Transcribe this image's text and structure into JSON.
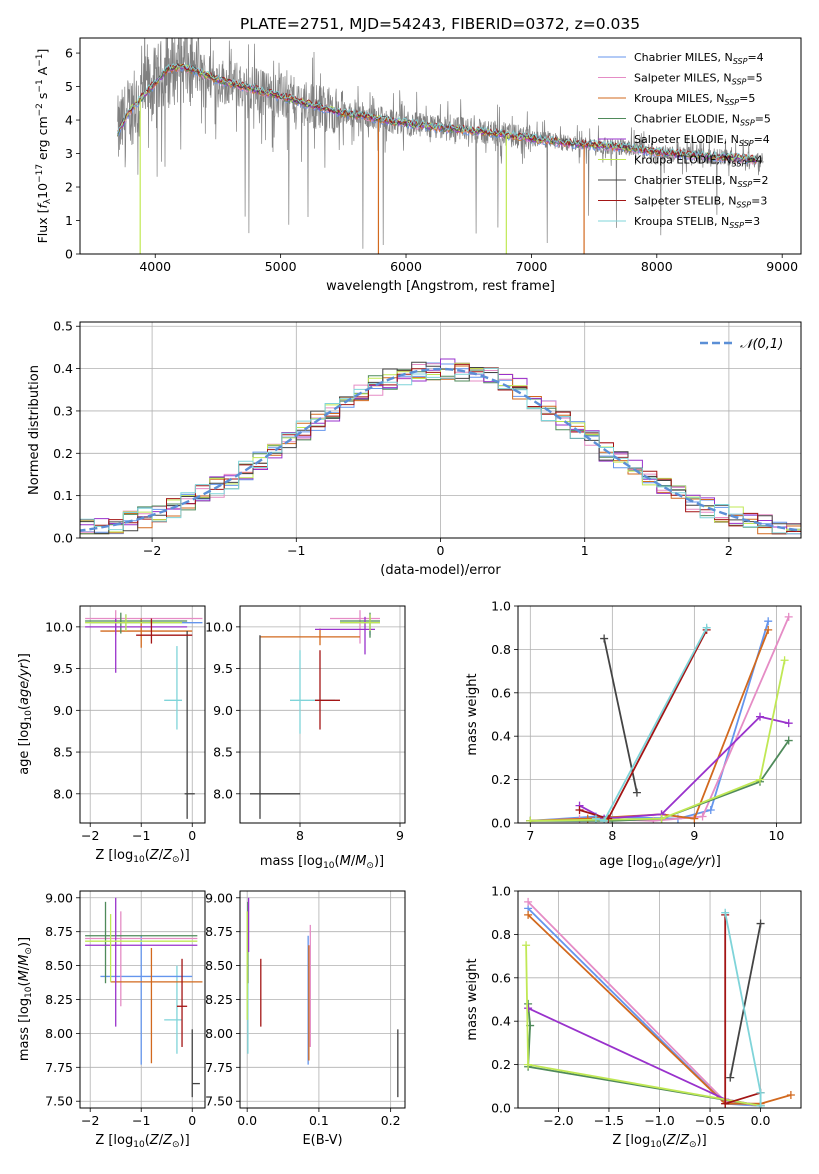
{
  "figure": {
    "title": "PLATE=2751, MJD=54243, FIBERID=0372, z=0.035"
  },
  "legend": [
    {
      "label": "Chabrier MILES, N",
      "sub": "SSP",
      "val": "=4",
      "color": "#6495ed"
    },
    {
      "label": "Salpeter MILES, N",
      "sub": "SSP",
      "val": "=5",
      "color": "#e58cc5"
    },
    {
      "label": "Kroupa MILES, N",
      "sub": "SSP",
      "val": "=5",
      "color": "#d2691e"
    },
    {
      "label": "Chabrier ELODIE, N",
      "sub": "SSP",
      "val": "=5",
      "color": "#4f8a5a"
    },
    {
      "label": "Salpeter ELODIE, N",
      "sub": "SSP",
      "val": "=4",
      "color": "#9932cc"
    },
    {
      "label": "Kroupa ELODIE, N",
      "sub": "SSP",
      "val": "=4",
      "color": "#c0e854"
    },
    {
      "label": "Chabrier STELIB, N",
      "sub": "SSP",
      "val": "=2",
      "color": "#444444"
    },
    {
      "label": "Salpeter STELIB, N",
      "sub": "SSP",
      "val": "=3",
      "color": "#a31515"
    },
    {
      "label": "Kroupa STELIB, N",
      "sub": "SSP",
      "val": "=3",
      "color": "#7fd4d9"
    }
  ],
  "chart_data": [
    {
      "id": "spectrum",
      "type": "line",
      "xlabel": "wavelength [Angstrom, rest frame]",
      "ylabel": "Flux [f_λ 10^-17 erg cm^-2 s^-1 A^-1]",
      "xlim": [
        3400,
        9150
      ],
      "ylim": [
        0,
        6.45
      ],
      "xticks": [
        4000,
        5000,
        6000,
        7000,
        8000,
        9000
      ],
      "yticks": [
        0,
        1,
        2,
        3,
        4,
        5,
        6
      ],
      "grid": false,
      "data_color": "#808080",
      "model_x": [
        3700,
        3800,
        3900,
        4000,
        4100,
        4200,
        4300,
        4500,
        4700,
        4900,
        5100,
        5300,
        5500,
        5700,
        5900,
        6100,
        6300,
        6500,
        6700,
        6900,
        7100,
        7300,
        7500,
        7700,
        7900,
        8100,
        8300,
        8500,
        8700,
        8800
      ],
      "model_y": [
        3.6,
        4.3,
        4.7,
        5.1,
        5.5,
        5.6,
        5.5,
        5.2,
        5.0,
        4.8,
        4.6,
        4.4,
        4.2,
        4.1,
        3.95,
        3.85,
        3.75,
        3.7,
        3.6,
        3.5,
        3.4,
        3.3,
        3.25,
        3.2,
        3.1,
        3.0,
        2.95,
        2.9,
        2.85,
        2.8
      ]
    },
    {
      "id": "residuals",
      "type": "line",
      "xlabel": "(data-model)/error",
      "ylabel": "Normed distribution",
      "xlim": [
        -2.5,
        2.5
      ],
      "ylim": [
        0,
        0.51
      ],
      "xticks": [
        -2,
        -1,
        0,
        1,
        2
      ],
      "yticks": [
        0.0,
        0.1,
        0.2,
        0.3,
        0.4,
        0.5
      ],
      "grid": true,
      "legend": "𝒩(0,1)",
      "gaussian": {
        "mean": 0,
        "sigma": 1,
        "color": "#5b8fd6"
      }
    },
    {
      "id": "age_vs_Z",
      "type": "scatter",
      "xlabel": "Z [log10(Z/Z⊙)]",
      "ylabel": "age  [log10(age/yr)]",
      "xlim": [
        -2.2,
        0.25
      ],
      "ylim": [
        7.65,
        10.25
      ],
      "xticks": [
        -2,
        -1,
        0
      ],
      "yticks": [
        8.0,
        8.5,
        9.0,
        9.5,
        10.0
      ],
      "grid": true,
      "points": [
        {
          "x": -0.3,
          "y": 9.12,
          "xerr": [
            0.25,
            0.1
          ],
          "yerr": [
            0.35,
            0.65
          ],
          "s": 8
        },
        {
          "x": -1.3,
          "y": 10.05,
          "xerr": [
            0.7,
            1.5
          ],
          "yerr": [
            0.1,
            0.1
          ],
          "s": 0
        },
        {
          "x": -1.5,
          "y": 10.1,
          "xerr": [
            0.6,
            1.7
          ],
          "yerr": [
            0.2,
            0.1
          ],
          "s": 1
        },
        {
          "x": -1.0,
          "y": 9.95,
          "xerr": [
            0.8,
            1.0
          ],
          "yerr": [
            0.2,
            0.15
          ],
          "s": 2
        },
        {
          "x": -1.4,
          "y": 10.07,
          "xerr": [
            0.7,
            1.3
          ],
          "yerr": [
            0.15,
            0.1
          ],
          "s": 3
        },
        {
          "x": -1.5,
          "y": 10.0,
          "xerr": [
            0.6,
            1.4
          ],
          "yerr": [
            0.55,
            0.1
          ],
          "s": 4
        },
        {
          "x": -1.3,
          "y": 10.05,
          "xerr": [
            0.8,
            1.1
          ],
          "yerr": [
            0.1,
            0.1
          ],
          "s": 5
        },
        {
          "x": -0.1,
          "y": 8.0,
          "xerr": [
            0.05,
            0.15
          ],
          "yerr": [
            0.3,
            1.95
          ],
          "s": 6
        },
        {
          "x": -0.8,
          "y": 9.9,
          "xerr": [
            0.3,
            0.8
          ],
          "yerr": [
            0.1,
            0.2
          ],
          "s": 7
        }
      ]
    },
    {
      "id": "age_vs_mass",
      "type": "scatter",
      "xlabel": "mass [log10(M/M⊙)]",
      "ylabel": "",
      "xlim": [
        7.4,
        9.05
      ],
      "ylim": [
        7.65,
        10.25
      ],
      "xticks": [
        8,
        9
      ],
      "yticks": [
        8.0,
        8.5,
        9.0,
        9.5,
        10.0
      ],
      "grid": true,
      "points": [
        {
          "x": 8.0,
          "y": 9.12,
          "xerr": [
            0.1,
            0.35
          ],
          "yerr": [
            0.4,
            0.6
          ],
          "s": 8
        },
        {
          "x": 8.7,
          "y": 10.05,
          "xerr": [
            0.3,
            0.1
          ],
          "yerr": [
            0.15,
            0.1
          ],
          "s": 0
        },
        {
          "x": 8.6,
          "y": 10.1,
          "xerr": [
            0.3,
            0.2
          ],
          "yerr": [
            0.3,
            0.1
          ],
          "s": 1
        },
        {
          "x": 8.2,
          "y": 9.88,
          "xerr": [
            0.6,
            0.4
          ],
          "yerr": [
            0.1,
            0.1
          ],
          "s": 2
        },
        {
          "x": 8.7,
          "y": 10.07,
          "xerr": [
            0.3,
            0.1
          ],
          "yerr": [
            0.2,
            0.1
          ],
          "s": 3
        },
        {
          "x": 8.65,
          "y": 9.97,
          "xerr": [
            0.5,
            0.1
          ],
          "yerr": [
            0.3,
            0.15
          ],
          "s": 4
        },
        {
          "x": 8.7,
          "y": 10.05,
          "xerr": [
            0.3,
            0.1
          ],
          "yerr": [
            0.1,
            0.1
          ],
          "s": 5
        },
        {
          "x": 7.6,
          "y": 8.0,
          "xerr": [
            0.1,
            0.4
          ],
          "yerr": [
            0.3,
            1.9
          ],
          "s": 6
        },
        {
          "x": 8.2,
          "y": 9.12,
          "xerr": [
            0.05,
            0.2
          ],
          "yerr": [
            0.35,
            0.6
          ],
          "s": 7
        }
      ]
    },
    {
      "id": "weight_vs_age",
      "type": "line",
      "xlabel": "age  [log10(age/yr)]",
      "ylabel": "mass weight",
      "xlim": [
        6.85,
        10.3
      ],
      "ylim": [
        0,
        1.0
      ],
      "xticks": [
        7,
        8,
        9,
        10
      ],
      "yticks": [
        0.0,
        0.2,
        0.4,
        0.6,
        0.8,
        1.0
      ],
      "grid": true,
      "series": [
        {
          "s": 0,
          "x": [
            7.0,
            7.8,
            8.8,
            9.2,
            9.9
          ],
          "y": [
            0.01,
            0.03,
            0.02,
            0.06,
            0.93
          ]
        },
        {
          "s": 1,
          "x": [
            7.0,
            7.6,
            8.5,
            9.1,
            10.15
          ],
          "y": [
            0.01,
            0.02,
            0.01,
            0.03,
            0.95
          ]
        },
        {
          "s": 2,
          "x": [
            7.0,
            7.7,
            8.6,
            9.0,
            9.9
          ],
          "y": [
            0.01,
            0.02,
            0.04,
            0.02,
            0.89
          ]
        },
        {
          "s": 3,
          "x": [
            7.0,
            8.0,
            8.6,
            9.8,
            10.15
          ],
          "y": [
            0.01,
            0.01,
            0.02,
            0.19,
            0.38
          ]
        },
        {
          "s": 4,
          "x": [
            7.6,
            7.9,
            8.6,
            9.8,
            10.15
          ],
          "y": [
            0.08,
            0.02,
            0.04,
            0.49,
            0.46
          ]
        },
        {
          "s": 5,
          "x": [
            7.0,
            8.6,
            9.8,
            10.1
          ],
          "y": [
            0.01,
            0.02,
            0.2,
            0.75
          ]
        },
        {
          "s": 6,
          "x": [
            7.9,
            8.3
          ],
          "y": [
            0.85,
            0.14
          ]
        },
        {
          "s": 7,
          "x": [
            7.6,
            7.95,
            9.15
          ],
          "y": [
            0.06,
            0.02,
            0.89
          ]
        },
        {
          "s": 8,
          "x": [
            7.8,
            7.9,
            9.15
          ],
          "y": [
            0.02,
            0.01,
            0.9
          ]
        }
      ]
    },
    {
      "id": "mass_vs_Z",
      "type": "scatter",
      "xlabel": "Z [log10(Z/Z⊙)]",
      "ylabel": "mass [log10(M/M⊙)]",
      "xlim": [
        -2.2,
        0.25
      ],
      "ylim": [
        7.45,
        9.05
      ],
      "xticks": [
        -2,
        -1,
        0
      ],
      "yticks": [
        7.5,
        7.75,
        8.0,
        8.25,
        8.5,
        8.75,
        9.0
      ],
      "grid": true,
      "points": [
        {
          "x": -0.3,
          "y": 8.1,
          "xerr": [
            0.25,
            0.1
          ],
          "yerr": [
            0.25,
            0.4
          ],
          "s": 8
        },
        {
          "x": -1.0,
          "y": 8.42,
          "xerr": [
            0.8,
            1.0
          ],
          "yerr": [
            0.65,
            0.3
          ],
          "s": 0
        },
        {
          "x": -1.4,
          "y": 8.7,
          "xerr": [
            0.7,
            1.5
          ],
          "yerr": [
            0.5,
            0.2
          ],
          "s": 1
        },
        {
          "x": -0.8,
          "y": 8.38,
          "xerr": [
            0.8,
            1.0
          ],
          "yerr": [
            0.6,
            0.25
          ],
          "s": 2
        },
        {
          "x": -1.7,
          "y": 8.72,
          "xerr": [
            0.4,
            1.8
          ],
          "yerr": [
            0.35,
            0.25
          ],
          "s": 3
        },
        {
          "x": -1.5,
          "y": 8.65,
          "xerr": [
            0.6,
            1.6
          ],
          "yerr": [
            0.6,
            0.35
          ],
          "s": 4
        },
        {
          "x": -1.6,
          "y": 8.68,
          "xerr": [
            0.5,
            1.7
          ],
          "yerr": [
            0.3,
            0.2
          ],
          "s": 5
        },
        {
          "x": 0.0,
          "y": 7.63,
          "xerr": [
            0.0,
            0.15
          ],
          "yerr": [
            0.1,
            0.4
          ],
          "s": 6
        },
        {
          "x": -0.2,
          "y": 8.2,
          "xerr": [
            0.1,
            0.1
          ],
          "yerr": [
            0.3,
            0.35
          ],
          "s": 7
        }
      ]
    },
    {
      "id": "mass_vs_EBV",
      "type": "scatter",
      "xlabel": "E(B-V)",
      "ylabel": "",
      "xlim": [
        -0.01,
        0.22
      ],
      "ylim": [
        7.45,
        9.05
      ],
      "xticks": [
        0.0,
        0.1,
        0.2
      ],
      "yticks": [
        7.5,
        7.75,
        8.0,
        8.25,
        8.5,
        8.75,
        9.0
      ],
      "grid": true,
      "points": [
        {
          "x": 0.001,
          "y": 8.1,
          "xerr": [
            0,
            0
          ],
          "yerr": [
            0.25,
            0.4
          ],
          "s": 8
        },
        {
          "x": 0.085,
          "y": 8.42,
          "xerr": [
            0,
            0
          ],
          "yerr": [
            0.65,
            0.3
          ],
          "s": 0
        },
        {
          "x": 0.088,
          "y": 8.5,
          "xerr": [
            0,
            0
          ],
          "yerr": [
            0.6,
            0.3
          ],
          "s": 1
        },
        {
          "x": 0.086,
          "y": 8.3,
          "xerr": [
            0,
            0
          ],
          "yerr": [
            0.5,
            0.35
          ],
          "s": 2
        },
        {
          "x": 0.001,
          "y": 8.72,
          "xerr": [
            0,
            0
          ],
          "yerr": [
            0.35,
            0.25
          ],
          "s": 3
        },
        {
          "x": 0.002,
          "y": 8.8,
          "xerr": [
            0,
            0
          ],
          "yerr": [
            0.2,
            0.2
          ],
          "s": 4
        },
        {
          "x": 0.0,
          "y": 8.6,
          "xerr": [
            0,
            0
          ],
          "yerr": [
            0.5,
            0.3
          ],
          "s": 5
        },
        {
          "x": 0.21,
          "y": 7.63,
          "xerr": [
            0,
            0
          ],
          "yerr": [
            0.1,
            0.4
          ],
          "s": 6
        },
        {
          "x": 0.019,
          "y": 8.3,
          "xerr": [
            0,
            0
          ],
          "yerr": [
            0.25,
            0.25
          ],
          "s": 7
        }
      ]
    },
    {
      "id": "weight_vs_Z",
      "type": "line",
      "xlabel": "Z [log10(Z/Z⊙)]",
      "ylabel": "mass weight",
      "xlim": [
        -2.4,
        0.4
      ],
      "ylim": [
        0,
        1.0
      ],
      "xticks": [
        -2.0,
        -1.5,
        -1.0,
        -0.5,
        0.0
      ],
      "yticks": [
        0.0,
        0.2,
        0.4,
        0.6,
        0.8,
        1.0
      ],
      "grid": true,
      "series": [
        {
          "s": 0,
          "x": [
            -2.3,
            -0.35,
            0.0
          ],
          "y": [
            0.92,
            0.02,
            0.01
          ]
        },
        {
          "s": 1,
          "x": [
            -2.3,
            -0.35,
            0.0
          ],
          "y": [
            0.95,
            0.03,
            0.01
          ]
        },
        {
          "s": 2,
          "x": [
            -2.3,
            -0.35,
            0.0,
            0.3
          ],
          "y": [
            0.89,
            0.02,
            0.02,
            0.06
          ]
        },
        {
          "s": 3,
          "x": [
            -2.3,
            -2.28,
            -2.3,
            0.0
          ],
          "y": [
            0.48,
            0.38,
            0.19,
            0.01
          ]
        },
        {
          "s": 4,
          "x": [
            -2.3,
            -0.35,
            0.0
          ],
          "y": [
            0.46,
            0.04,
            0.01
          ]
        },
        {
          "s": 5,
          "x": [
            -2.32,
            -2.3,
            0.0
          ],
          "y": [
            0.75,
            0.2,
            0.01
          ]
        },
        {
          "s": 6,
          "x": [
            -0.3,
            0.0
          ],
          "y": [
            0.14,
            0.85
          ]
        },
        {
          "s": 7,
          "x": [
            -0.35,
            -0.35,
            0.0
          ],
          "y": [
            0.89,
            0.02,
            0.07
          ]
        },
        {
          "s": 8,
          "x": [
            -0.35,
            0.0,
            0.0
          ],
          "y": [
            0.9,
            0.07,
            0.01
          ]
        }
      ]
    }
  ]
}
